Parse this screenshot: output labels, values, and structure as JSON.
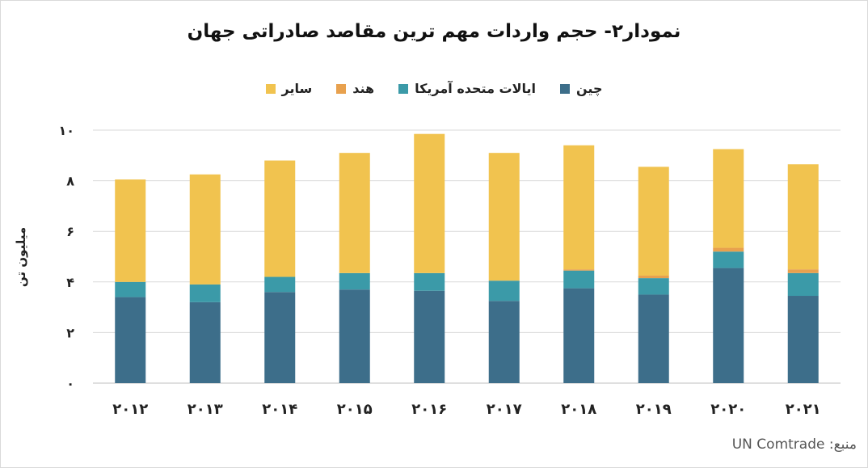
{
  "title": "نمودار۲- حجم واردات مهم ترین مقاصد صادراتی جهان",
  "ylabel": "میلیون تن",
  "source": "منبع: UN Comtrade",
  "chart_data": {
    "type": "bar",
    "stacked": true,
    "title": "نمودار۲- حجم واردات مهم ترین مقاصد صادراتی جهان",
    "ylabel": "میلیون تن",
    "xlabel": "",
    "ylim": [
      0,
      10
    ],
    "yticks": [
      0,
      2,
      4,
      6,
      8,
      10
    ],
    "ytick_labels": [
      "۰",
      "۲",
      "۴",
      "۶",
      "۸",
      "۱۰"
    ],
    "grid": true,
    "legend_position": "top",
    "categories": [
      "۲۰۱۲",
      "۲۰۱۳",
      "۲۰۱۴",
      "۲۰۱۵",
      "۲۰۱۶",
      "۲۰۱۷",
      "۲۰۱۸",
      "۲۰۱۹",
      "۲۰۲۰",
      "۲۰۲۱"
    ],
    "series": [
      {
        "name": "چین",
        "color": "#3d6e8a",
        "values": [
          3.4,
          3.2,
          3.6,
          3.7,
          3.65,
          3.25,
          3.75,
          3.5,
          4.55,
          3.45
        ]
      },
      {
        "name": "ایالات متحده آمریکا",
        "color": "#3b9aa8",
        "values": [
          0.6,
          0.7,
          0.6,
          0.65,
          0.7,
          0.8,
          0.7,
          0.65,
          0.65,
          0.9
        ]
      },
      {
        "name": "هند",
        "color": "#e8a14e",
        "values": [
          0.0,
          0.0,
          0.0,
          0.0,
          0.0,
          0.0,
          0.05,
          0.1,
          0.15,
          0.15
        ]
      },
      {
        "name": "سایر",
        "color": "#f1c34f",
        "values": [
          4.05,
          4.35,
          4.6,
          4.75,
          5.5,
          5.05,
          4.9,
          4.3,
          3.9,
          4.15
        ]
      }
    ]
  }
}
